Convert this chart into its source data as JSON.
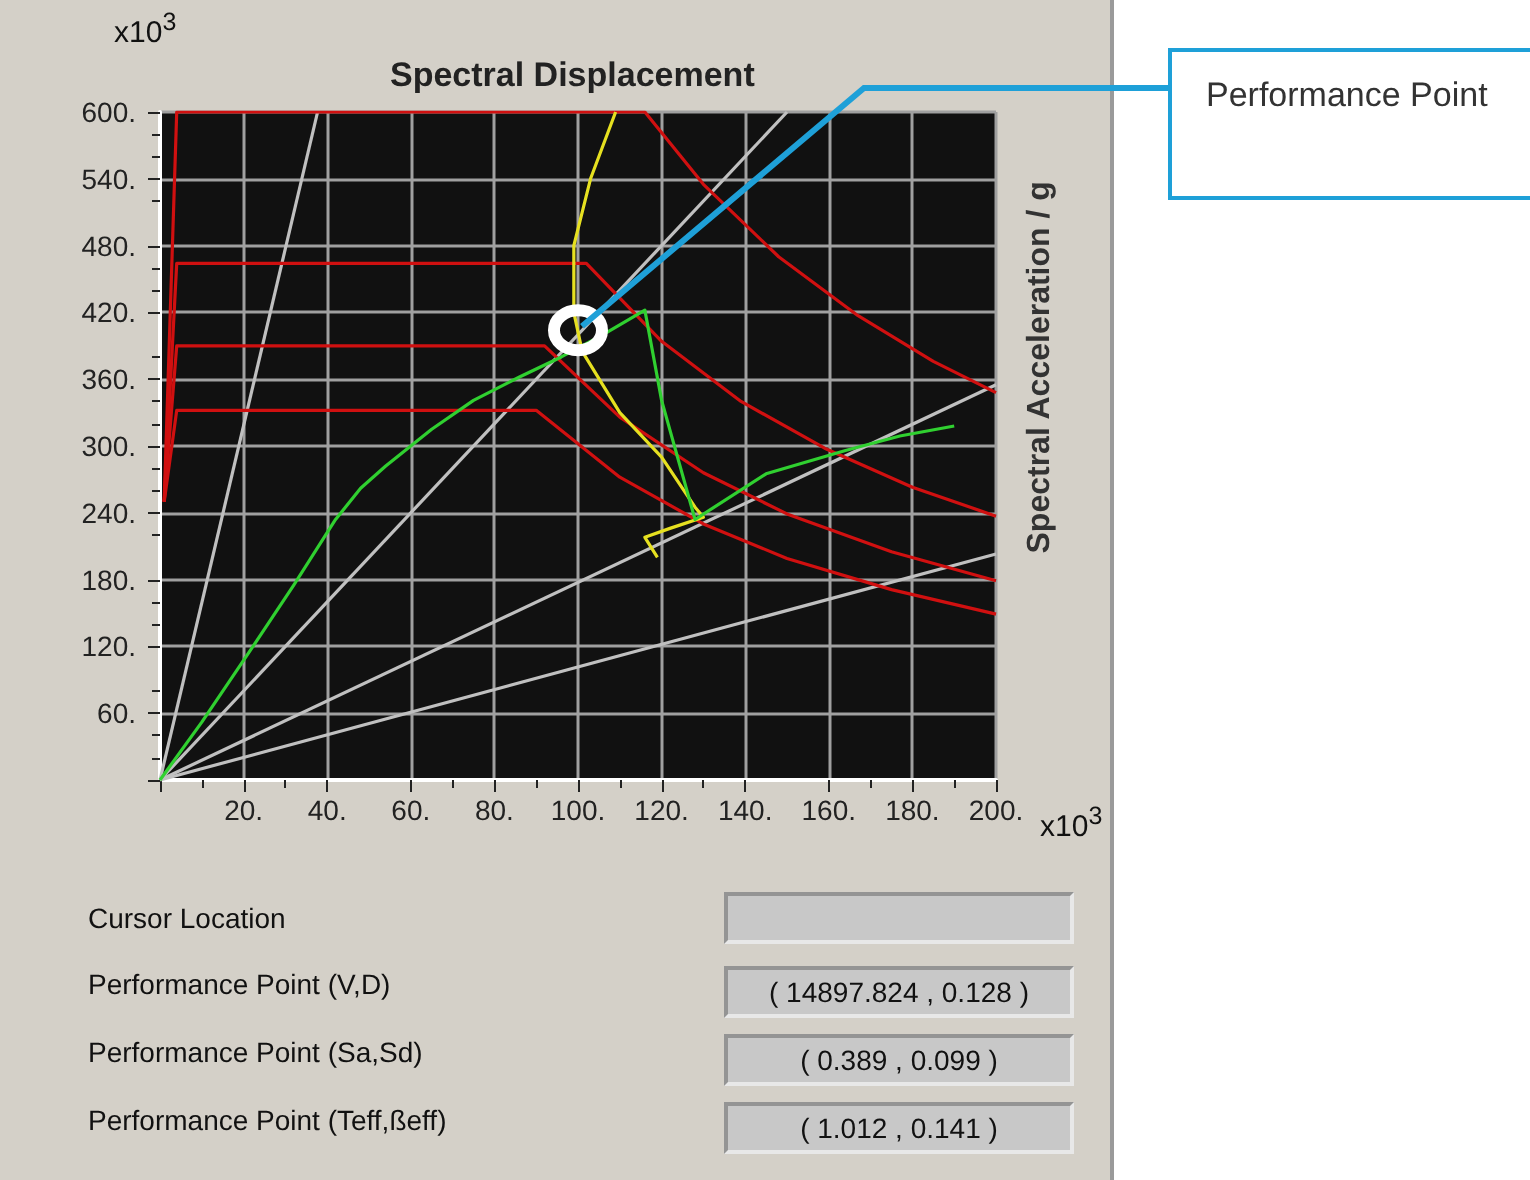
{
  "chart_data": {
    "type": "line",
    "title": "Spectral Displacement",
    "ylabel": "Spectral Acceleration / g",
    "xlim": [
      0,
      200
    ],
    "ylim": [
      0,
      600
    ],
    "xticks": [
      {
        "value": 0,
        "label": null
      },
      {
        "value": 20,
        "label": "20."
      },
      {
        "value": 40,
        "label": "40."
      },
      {
        "value": 60,
        "label": "60."
      },
      {
        "value": 80,
        "label": "80."
      },
      {
        "value": 100,
        "label": "100."
      },
      {
        "value": 120,
        "label": "120."
      },
      {
        "value": 140,
        "label": "140."
      },
      {
        "value": 160,
        "label": "160."
      },
      {
        "value": 180,
        "label": "180."
      },
      {
        "value": 200,
        "label": "200."
      }
    ],
    "yticks": [
      {
        "value": 0,
        "label": null
      },
      {
        "value": 60,
        "label": "60."
      },
      {
        "value": 120,
        "label": "120."
      },
      {
        "value": 180,
        "label": "180."
      },
      {
        "value": 240,
        "label": "240."
      },
      {
        "value": 300,
        "label": "300."
      },
      {
        "value": 360,
        "label": "360."
      },
      {
        "value": 420,
        "label": "420."
      },
      {
        "value": 480,
        "label": "480."
      },
      {
        "value": 540,
        "label": "540."
      },
      {
        "value": 600,
        "label": "600."
      }
    ],
    "grid": true,
    "marker": "none",
    "series": [
      {
        "color": "#c0c0c0",
        "x": [
          0,
          37.7
        ],
        "values": [
          0,
          600
        ]
      },
      {
        "color": "#c0c0c0",
        "x": [
          0,
          150
        ],
        "values": [
          0,
          600
        ]
      },
      {
        "color": "#c0c0c0",
        "x": [
          0,
          200
        ],
        "values": [
          0,
          355
        ]
      },
      {
        "color": "#c0c0c0",
        "x": [
          0,
          200
        ],
        "values": [
          0,
          203
        ]
      },
      {
        "color": "#d01010",
        "x": [
          1,
          4,
          116,
          130,
          148,
          167,
          185,
          200
        ],
        "values": [
          250,
          600,
          600,
          535,
          470,
          417,
          376,
          348
        ]
      },
      {
        "color": "#d01010",
        "x": [
          1,
          4,
          102,
          120,
          139,
          159,
          180,
          200
        ],
        "values": [
          250,
          464,
          464,
          394,
          340,
          298,
          263,
          237
        ]
      },
      {
        "color": "#d01010",
        "x": [
          1,
          4,
          92,
          110,
          130,
          150,
          175,
          200
        ],
        "values": [
          250,
          390,
          390,
          326,
          276,
          239,
          205,
          179
        ]
      },
      {
        "color": "#d01010",
        "x": [
          1,
          4,
          90,
          110,
          130,
          150,
          175,
          200
        ],
        "values": [
          250,
          332,
          332,
          272,
          230,
          199,
          171,
          149
        ]
      },
      {
        "color": "#e6e020",
        "x": [
          109,
          103,
          99,
          99,
          101,
          110,
          120,
          128,
          130,
          122,
          116,
          119
        ],
        "values": [
          600,
          540,
          480,
          420,
          385,
          330,
          290,
          245,
          236,
          226,
          218,
          200
        ]
      },
      {
        "color": "#30d030",
        "x": [
          0,
          10,
          21,
          32,
          42,
          48,
          54,
          65,
          75,
          86,
          96,
          106,
          116,
          120,
          128,
          145,
          164,
          177,
          190
        ],
        "values": [
          0,
          52,
          113,
          175,
          234,
          262,
          282,
          315,
          341,
          362,
          380,
          400,
          422,
          341,
          234,
          275,
          296,
          309,
          318
        ]
      }
    ],
    "annotations": [
      "x10$^{3}$",
      "x10$^{3}$",
      {
        "text": "Performance Point",
        "x": 100,
        "y": 404
      },
      "Cursor Location",
      "Performance Point (V,D)",
      "( 14897.824 , 0.128 )",
      "Performance Point (Sa,Sd)",
      "( 0.389 , 0.099 )",
      "Performance Point (Teff,ßeff)",
      "( 1.012 , 0.141 )"
    ]
  }
}
